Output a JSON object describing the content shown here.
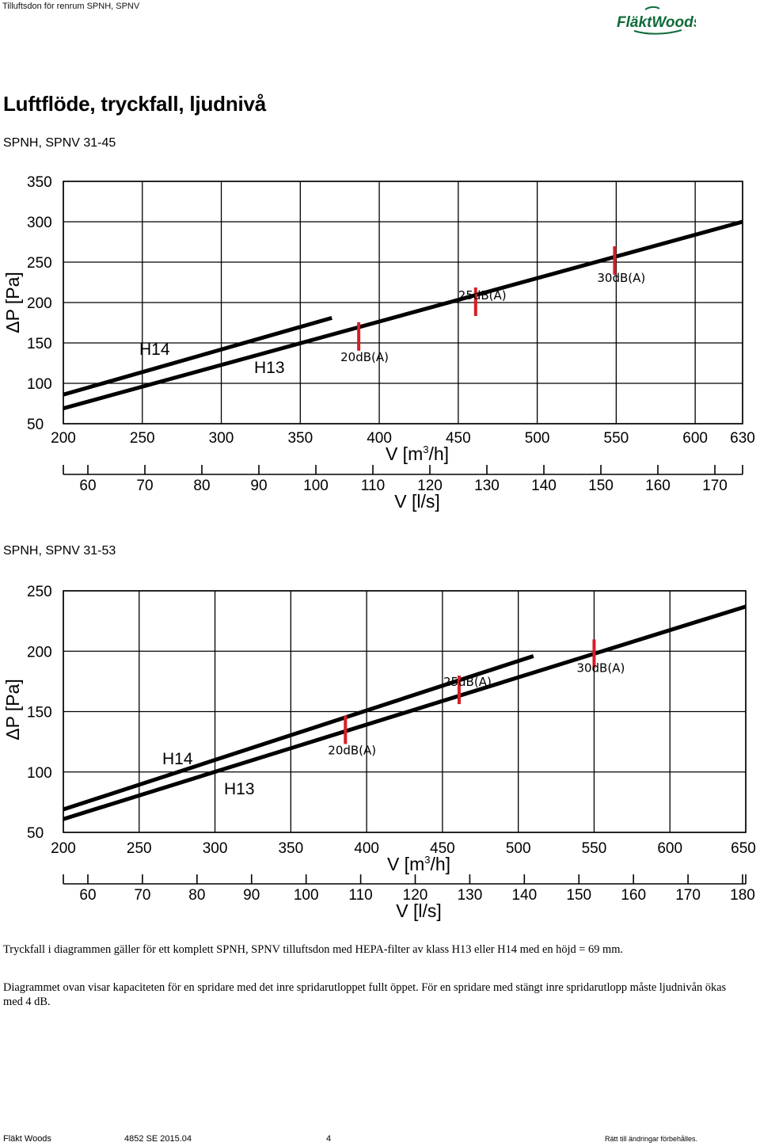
{
  "header": {
    "title": "Tilluftsdon för renrum SPNH, SPNV",
    "logo_text": "FläktWoods"
  },
  "section_title": "Luftflöde, tryckfall, ljudnivå",
  "notes": [
    "Tryckfall i diagrammen gäller för ett komplett SPNH, SPNV tilluftsdon med HEPA-filter av klass H13 eller H14 med en höjd = 69 mm.",
    "Diagrammet ovan visar kapaciteten för en spridare med det inre spridarutloppet fullt öppet. För en spridare med stängt inre spridarutlopp måste ljudnivån ökas med 4 dB."
  ],
  "footer": {
    "company": "Fläkt Woods",
    "doc_number": "4852 SE 2015.04",
    "page": "4",
    "rights": "Rätt till ändringar förbehålles."
  },
  "chart_data": [
    {
      "type": "line",
      "subtitle": "SPNH, SPNV 31-45",
      "ylabel": "ΔP [Pa]",
      "xlabel": "V [m3/h]",
      "x2label": "V [l/s]",
      "ylim": [
        50,
        350
      ],
      "yticks": [
        50,
        100,
        150,
        200,
        250,
        300,
        350
      ],
      "xlim": [
        200,
        630
      ],
      "xticks": [
        200,
        250,
        300,
        350,
        400,
        450,
        500,
        550,
        600,
        630
      ],
      "x2ticks": [
        60,
        70,
        80,
        90,
        100,
        110,
        120,
        130,
        140,
        150,
        160,
        170
      ],
      "grid": true,
      "series": [
        {
          "name": "H14",
          "x": [
            200,
            370
          ],
          "y": [
            86,
            181
          ]
        },
        {
          "name": "H13",
          "x": [
            200,
            630
          ],
          "y": [
            69,
            300
          ]
        }
      ],
      "markers": [
        {
          "label": "20dB(A)",
          "x": 387,
          "y": 158
        },
        {
          "label": "25dB(A)",
          "x": 461,
          "y": 201
        },
        {
          "label": "30dB(A)",
          "x": 549,
          "y": 252
        }
      ]
    },
    {
      "type": "line",
      "subtitle": "SPNH, SPNV 31-53",
      "ylabel": "ΔP [Pa]",
      "xlabel": "V [m3/h]",
      "x2label": "V [l/s]",
      "ylim": [
        50,
        250
      ],
      "yticks": [
        50,
        100,
        150,
        200,
        250
      ],
      "xlim": [
        200,
        650
      ],
      "xticks": [
        200,
        250,
        300,
        350,
        400,
        450,
        500,
        550,
        600,
        650
      ],
      "x2ticks": [
        60,
        70,
        80,
        90,
        100,
        110,
        120,
        130,
        140,
        150,
        160,
        170,
        180
      ],
      "grid": true,
      "series": [
        {
          "name": "H14",
          "x": [
            200,
            510
          ],
          "y": [
            69,
            196
          ]
        },
        {
          "name": "H13",
          "x": [
            200,
            650
          ],
          "y": [
            61,
            237
          ]
        }
      ],
      "markers": [
        {
          "label": "20dB(A)",
          "x": 386,
          "y": 135
        },
        {
          "label": "25dB(A)",
          "x": 461,
          "y": 168
        },
        {
          "label": "30dB(A)",
          "x": 550,
          "y": 198
        }
      ]
    }
  ]
}
